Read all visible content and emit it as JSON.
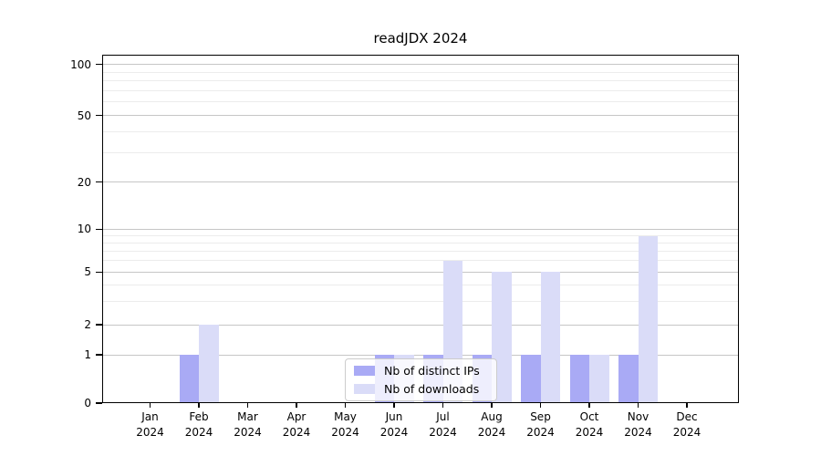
{
  "title": "readJDX 2024",
  "chart_data": {
    "type": "bar",
    "title": "readJDX 2024",
    "categories": [
      "Jan 2024",
      "Feb 2024",
      "Mar 2024",
      "Apr 2024",
      "May 2024",
      "Jun 2024",
      "Jul 2024",
      "Aug 2024",
      "Sep 2024",
      "Oct 2024",
      "Nov 2024",
      "Dec 2024"
    ],
    "series": [
      {
        "name": "Nb of distinct IPs",
        "color": "#a9aaf5",
        "values": [
          0,
          1,
          0,
          0,
          0,
          1,
          1,
          1,
          1,
          1,
          1,
          0
        ]
      },
      {
        "name": "Nb of downloads",
        "color": "#dadcf8",
        "values": [
          0,
          2,
          0,
          0,
          0,
          1,
          6,
          5,
          5,
          1,
          9,
          0
        ]
      }
    ],
    "xlabel": "",
    "ylabel": "",
    "yscale": "log above 1, linear 0-1",
    "yticks_major": [
      0,
      1,
      2,
      5,
      10,
      20,
      50,
      100
    ],
    "yticks_minor": [
      3,
      4,
      6,
      7,
      8,
      9,
      30,
      40,
      60,
      70,
      80,
      90
    ],
    "ylim": [
      0,
      110
    ],
    "grid": "horizontal major+minor",
    "legend_position": "inside lower-center"
  },
  "colors": {
    "grid_major": "#c6c6c6",
    "grid_minor": "#ececec",
    "axis": "#000000",
    "background": "#ffffff"
  }
}
